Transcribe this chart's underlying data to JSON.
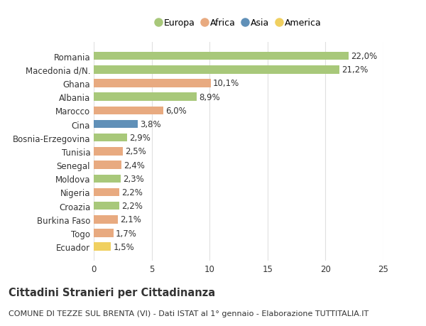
{
  "categories": [
    "Romania",
    "Macedonia d/N.",
    "Ghana",
    "Albania",
    "Marocco",
    "Cina",
    "Bosnia-Erzegovina",
    "Tunisia",
    "Senegal",
    "Moldova",
    "Nigeria",
    "Croazia",
    "Burkina Faso",
    "Togo",
    "Ecuador"
  ],
  "values": [
    22.0,
    21.2,
    10.1,
    8.9,
    6.0,
    3.8,
    2.9,
    2.5,
    2.4,
    2.3,
    2.2,
    2.2,
    2.1,
    1.7,
    1.5
  ],
  "labels": [
    "22,0%",
    "21,2%",
    "10,1%",
    "8,9%",
    "6,0%",
    "3,8%",
    "2,9%",
    "2,5%",
    "2,4%",
    "2,3%",
    "2,2%",
    "2,2%",
    "2,1%",
    "1,7%",
    "1,5%"
  ],
  "continents": [
    "Europa",
    "Europa",
    "Africa",
    "Europa",
    "Africa",
    "Asia",
    "Europa",
    "Africa",
    "Africa",
    "Europa",
    "Africa",
    "Europa",
    "Africa",
    "Africa",
    "America"
  ],
  "colors": {
    "Europa": "#a8c87a",
    "Africa": "#e8aa80",
    "Asia": "#6090b8",
    "America": "#f0d060"
  },
  "legend_order": [
    "Europa",
    "Africa",
    "Asia",
    "America"
  ],
  "xlim": [
    0,
    25
  ],
  "xticks": [
    0,
    5,
    10,
    15,
    20,
    25
  ],
  "title": "Cittadini Stranieri per Cittadinanza",
  "subtitle": "COMUNE DI TEZZE SUL BRENTA (VI) - Dati ISTAT al 1° gennaio - Elaborazione TUTTITALIA.IT",
  "background_color": "#ffffff",
  "bar_height": 0.6,
  "grid_color": "#e0e0e0",
  "text_color": "#333333",
  "label_fontsize": 8.5,
  "tick_fontsize": 8.5,
  "title_fontsize": 10.5,
  "subtitle_fontsize": 8.0
}
